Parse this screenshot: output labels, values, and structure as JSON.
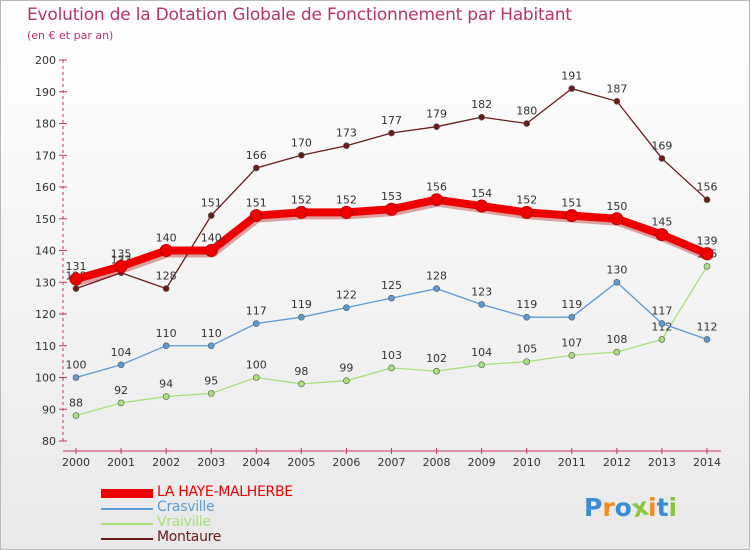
{
  "header": {
    "title": "Evolution de la Dotation Globale de Fonctionnement par Habitant",
    "subtitle": "(en € et par an)"
  },
  "chart_data": {
    "type": "line",
    "title": "Evolution de la Dotation Globale de Fonctionnement par Habitant",
    "subtitle": "(en € et par an)",
    "xlabel": "",
    "ylabel": "",
    "ylim": [
      80,
      200
    ],
    "yticks": [
      80,
      90,
      100,
      110,
      120,
      130,
      140,
      150,
      160,
      170,
      180,
      190,
      200
    ],
    "x": [
      "2000",
      "2001",
      "2002",
      "2003",
      "2004",
      "2005",
      "2006",
      "2007",
      "2008",
      "2009",
      "2010",
      "2011",
      "2012",
      "2013",
      "2014"
    ],
    "grid": false,
    "legend_position": "bottom-left",
    "series": [
      {
        "name": "Montaure",
        "color": "#6b1a1a",
        "values": [
          128,
          133,
          128,
          151,
          166,
          170,
          173,
          177,
          179,
          182,
          180,
          191,
          187,
          169,
          156
        ]
      },
      {
        "name": "Vraiville",
        "color": "#a8e07a",
        "values": [
          88,
          92,
          94,
          95,
          100,
          98,
          99,
          103,
          102,
          104,
          105,
          107,
          108,
          112,
          135
        ]
      },
      {
        "name": "Crasville",
        "color": "#5b9bd5",
        "values": [
          100,
          104,
          110,
          110,
          117,
          119,
          122,
          125,
          128,
          123,
          119,
          119,
          130,
          117,
          112
        ]
      },
      {
        "name": "LA HAYE-MALHERBE",
        "color": "#ee0000",
        "values": [
          131,
          135,
          140,
          140,
          151,
          152,
          152,
          153,
          156,
          154,
          152,
          151,
          150,
          145,
          139
        ]
      }
    ]
  },
  "legend": {
    "items": [
      {
        "label": "LA HAYE-MALHERBE",
        "color": "#ee0000"
      },
      {
        "label": "Crasville",
        "color": "#5b9bd5"
      },
      {
        "label": "Vraiville",
        "color": "#a8e07a"
      },
      {
        "label": "Montaure",
        "color": "#6b1a1a"
      }
    ]
  },
  "logo": {
    "letters": [
      "P",
      "r",
      "o",
      "x",
      "i",
      "t",
      "i"
    ],
    "colors": [
      "#3a8ed6",
      "#f28c1e",
      "#3a8ed6",
      "#8cc63f",
      "#f28c1e",
      "#3a8ed6",
      "#8cc63f"
    ]
  }
}
